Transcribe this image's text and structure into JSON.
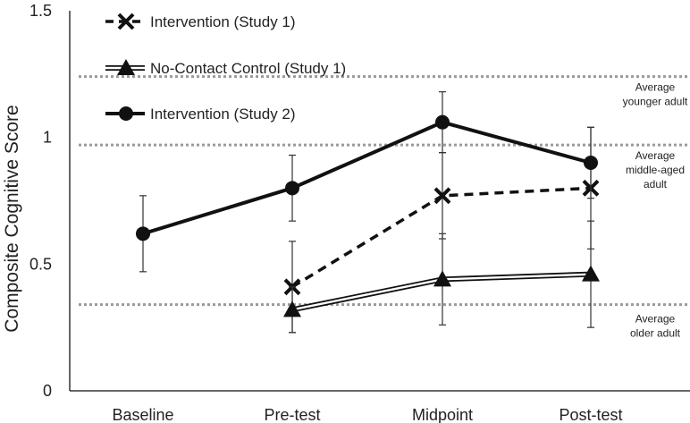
{
  "chart_data": {
    "type": "line",
    "title": "",
    "xlabel": "",
    "ylabel": "Composite Cognitive Score",
    "ylim": [
      0,
      1.5
    ],
    "yticks": [
      "0",
      "0.5",
      "1",
      "1.5"
    ],
    "categories": [
      "Baseline",
      "Pre-test",
      "Midpoint",
      "Post-test"
    ],
    "legend_position": "top-left",
    "series": [
      {
        "name": "Intervention (Study 1)",
        "style": "dashed-x",
        "values": [
          null,
          0.41,
          0.77,
          0.8
        ],
        "errors": [
          null,
          0.18,
          0.17,
          0.24
        ]
      },
      {
        "name": "No-Contact Control (Study 1)",
        "style": "double-triangle",
        "values": [
          null,
          0.32,
          0.44,
          0.46
        ],
        "errors": [
          null,
          0.09,
          0.18,
          0.21
        ]
      },
      {
        "name": "Intervention (Study 2)",
        "style": "solid-circle",
        "values": [
          0.62,
          0.8,
          1.06,
          0.9
        ],
        "errors": [
          0.15,
          0.13,
          0.12,
          0.14
        ]
      }
    ],
    "reference_lines": [
      {
        "label_lines": [
          "Average",
          "younger adult"
        ],
        "value": 1.24
      },
      {
        "label_lines": [
          "Average",
          "middle-aged",
          "adult"
        ],
        "value": 0.97
      },
      {
        "label_lines": [
          "Average",
          "older adult"
        ],
        "value": 0.34
      }
    ]
  }
}
